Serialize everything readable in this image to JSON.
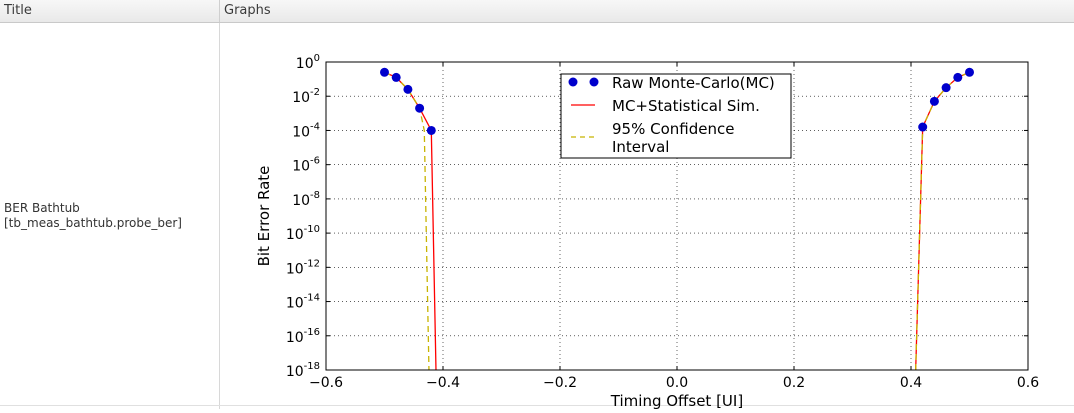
{
  "header": {
    "title_col": "Title",
    "graphs_col": "Graphs"
  },
  "row": {
    "title_line1": "BER Bathtub",
    "title_line2": "[tb_meas_bathtub.probe_ber]"
  },
  "chart_data": {
    "type": "scatter",
    "xlabel": "Timing Offset [UI]",
    "ylabel": "Bit Error Rate",
    "xlim": [
      -0.6,
      0.6
    ],
    "ylim_log10": [
      -18,
      0
    ],
    "yscale": "log",
    "grid": true,
    "legend_placement": "upper-center",
    "xticks": [
      "−0.6",
      "−0.4",
      "−0.2",
      "0.0",
      "0.2",
      "0.4",
      "0.6"
    ],
    "xtick_values": [
      -0.6,
      -0.4,
      -0.2,
      0.0,
      0.2,
      0.4,
      0.6
    ],
    "ytick_exponents": [
      0,
      -2,
      -4,
      -6,
      -8,
      -10,
      -12,
      -14,
      -16,
      -18
    ],
    "series": [
      {
        "name": "Raw Monte-Carlo(MC)",
        "style": "markers",
        "color": "#0000cc",
        "left": {
          "x": [
            -0.5,
            -0.48,
            -0.46,
            -0.44,
            -0.42
          ],
          "log10_y": [
            -0.6,
            -0.9,
            -1.6,
            -2.7,
            -4.0
          ]
        },
        "right": {
          "x": [
            0.42,
            0.44,
            0.46,
            0.48,
            0.5
          ],
          "log10_y": [
            -3.8,
            -2.3,
            -1.5,
            -0.9,
            -0.6
          ]
        }
      },
      {
        "name": "MC+Statistical Sim.",
        "style": "line",
        "color": "#ff0000",
        "left": {
          "x": [
            -0.5,
            -0.48,
            -0.46,
            -0.44,
            -0.42,
            -0.412
          ],
          "log10_y": [
            -0.6,
            -0.9,
            -1.6,
            -2.7,
            -4.0,
            -18.5
          ]
        },
        "right": {
          "x": [
            0.408,
            0.42,
            0.44,
            0.46,
            0.48,
            0.5
          ],
          "log10_y": [
            -18.5,
            -3.8,
            -2.3,
            -1.5,
            -0.9,
            -0.6
          ]
        }
      },
      {
        "name": "95% Confidence Interval",
        "style": "dashed",
        "color": "#c8b400",
        "left": {
          "x": [
            -0.5,
            -0.48,
            -0.46,
            -0.44,
            -0.432,
            -0.424
          ],
          "log10_y": [
            -0.6,
            -0.9,
            -1.6,
            -2.7,
            -4.0,
            -18.5
          ]
        },
        "right": {
          "x": [
            0.408,
            0.42,
            0.44,
            0.46,
            0.48,
            0.5
          ],
          "log10_y": [
            -18.5,
            -3.8,
            -2.3,
            -1.5,
            -0.9,
            -0.6
          ]
        }
      }
    ],
    "legend_lines": {
      "mc": "Raw Monte-Carlo(MC)",
      "stat": "MC+Statistical Sim.",
      "ci_line1": "95% Confidence",
      "ci_line2": "Interval"
    }
  }
}
